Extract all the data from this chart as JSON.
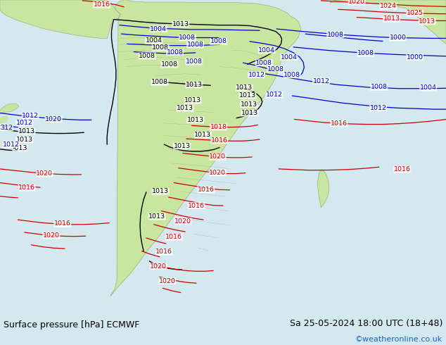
{
  "title_left": "Surface pressure [hPa] ECMWF",
  "title_right": "Sa 25-05-2024 18:00 UTC (18+48)",
  "copyright": "©weatheronline.co.uk",
  "ocean_color": "#d4e8f0",
  "land_color": "#c8e6a0",
  "border_color": "#999999",
  "fig_width": 6.34,
  "fig_height": 4.9,
  "dpi": 100,
  "white_bar_color": "#f0f0f0",
  "bottom_text_color": "#000000",
  "copyright_color": "#1a5fc8",
  "title_fontsize": 9.0,
  "copyright_fontsize": 8.0,
  "label_fontsize": 6.8
}
